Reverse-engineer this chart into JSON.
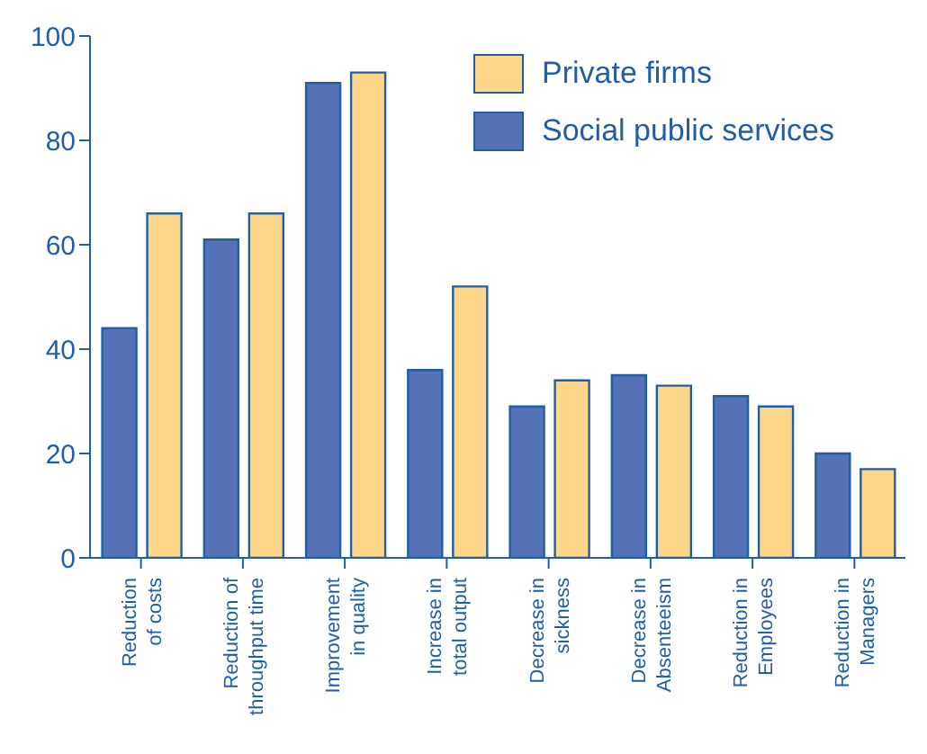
{
  "chart_data": {
    "type": "bar",
    "categories": [
      "Reduction\nof costs",
      "Reduction of\nthroughput time",
      "Improvement\nin quality",
      "Increase in\ntotal output",
      "Decrease in\nsickness",
      "Decrease in\nAbsenteeism",
      "Reduction in\nEmployees",
      "Reduction in\nManagers"
    ],
    "series": [
      {
        "name": "Social public services",
        "color": "#5472b5",
        "values": [
          44,
          61,
          91,
          36,
          29,
          35,
          31,
          20
        ]
      },
      {
        "name": "Private firms",
        "color": "#fdd68a",
        "values": [
          66,
          66,
          93,
          52,
          34,
          33,
          29,
          17
        ]
      }
    ],
    "ylim": [
      0,
      100
    ],
    "yticks": [
      0,
      20,
      40,
      60,
      80,
      100
    ],
    "grid": false,
    "legend": "top right"
  }
}
